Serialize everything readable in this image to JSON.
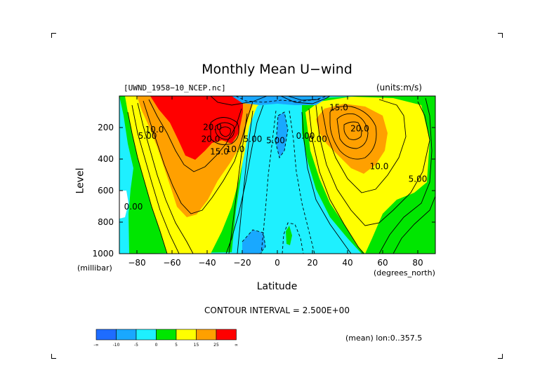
{
  "title": "Monthly Mean U−wind",
  "dataset_label": "[UWND_1958−10_NCEP.nc]",
  "units_label": "(units:m/s)",
  "y_axis_label": "Level",
  "y_axis_units": "(millibar)",
  "x_axis_label": "Latitude",
  "x_axis_units": "(degrees_north)",
  "contour_interval": "CONTOUR INTERVAL = 2.500E+00",
  "mean_lon": "(mean) lon:0..357.5",
  "chart_data": {
    "type": "heatmap",
    "title": "Monthly Mean U−wind",
    "xlabel": "Latitude",
    "ylabel": "Level",
    "xlim": [
      -90,
      90
    ],
    "ylim": [
      1000,
      0
    ],
    "x_ticks": [
      -80,
      -60,
      -40,
      -20,
      0,
      20,
      40,
      60,
      80
    ],
    "y_ticks": [
      200,
      400,
      600,
      800,
      1000
    ],
    "x_tick_labels": [
      "−80",
      "−60",
      "−40",
      "−20",
      "0",
      "20",
      "40",
      "60",
      "80"
    ],
    "y_tick_labels": [
      "200",
      "400",
      "600",
      "800",
      "1000"
    ],
    "contour_labels": [
      {
        "text": "15.0",
        "x": -33,
        "y": 370
      },
      {
        "text": "20.0",
        "x": -38,
        "y": 290
      },
      {
        "text": "20.0",
        "x": -37,
        "y": 215
      },
      {
        "text": "10.0",
        "x": -24,
        "y": 355
      },
      {
        "text": "5.00",
        "x": -14,
        "y": 290
      },
      {
        "text": "5.00",
        "x": -1,
        "y": 300
      },
      {
        "text": "10.0",
        "x": -70,
        "y": 230
      },
      {
        "text": "5.00",
        "x": -74,
        "y": 270
      },
      {
        "text": "0.00",
        "x": -82,
        "y": 720
      },
      {
        "text": "0.00",
        "x": 16,
        "y": 270
      },
      {
        "text": "0.00",
        "x": 23,
        "y": 290
      },
      {
        "text": "15.0",
        "x": 35,
        "y": 90
      },
      {
        "text": "20.0",
        "x": 47,
        "y": 225
      },
      {
        "text": "10.0",
        "x": 58,
        "y": 465
      },
      {
        "text": "5.00",
        "x": 80,
        "y": 545
      }
    ],
    "colorbar": {
      "colors": [
        "#1e6cff",
        "#19a8ff",
        "#1ef0ff",
        "#00e600",
        "#ffff00",
        "#ffa000",
        "#ff0000"
      ],
      "labels": [
        "-∞",
        "-10",
        "-5",
        "0",
        "5",
        "15",
        "25",
        "∞"
      ]
    }
  }
}
